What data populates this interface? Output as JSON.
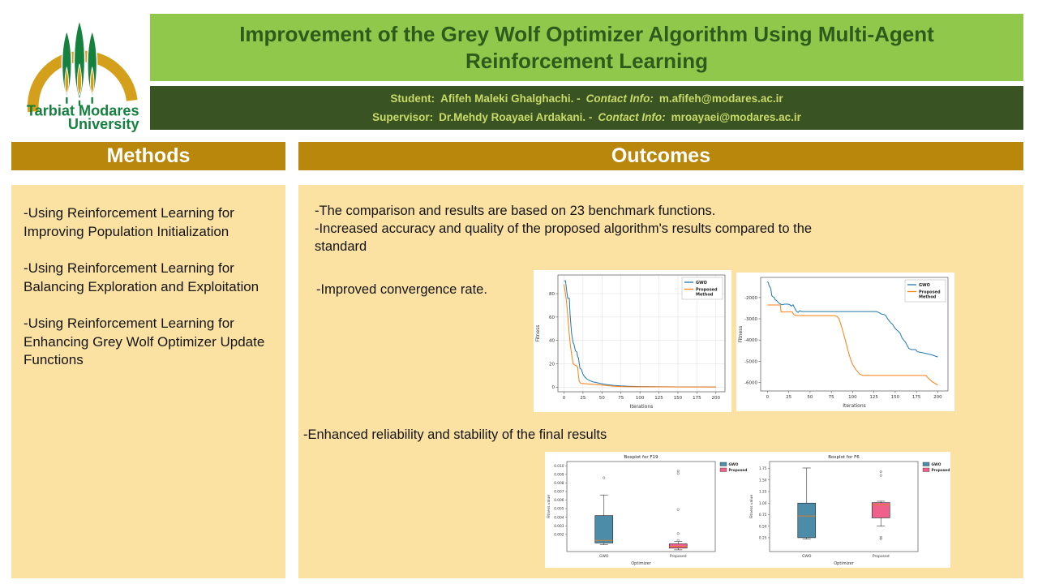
{
  "logo": {
    "line1": "Tarbiat Modares",
    "line2": "University"
  },
  "title": "Improvement of the Grey Wolf Optimizer Algorithm Using Multi-Agent Reinforcement Learning",
  "info_bar": {
    "student_label": "Student:",
    "student_name": "Afifeh Maleki Ghalghachi. -",
    "student_contact_label": "Contact Info:",
    "student_email": "m.afifeh@modares.ac.ir",
    "supervisor_label": "Supervisor:",
    "supervisor_name": "Dr.Mehdy Roayaei Ardakani. -",
    "supervisor_contact_label": "Contact Info:",
    "supervisor_email": "mroayaei@modares.ac.ir"
  },
  "methods": {
    "header": "Methods",
    "items": [
      "-Using Reinforcement Learning for Improving Population Initialization",
      "-Using Reinforcement Learning for Balancing Exploration and Exploitation",
      "-Using Reinforcement Learning for Enhancing Grey Wolf Optimizer Update Functions"
    ]
  },
  "outcomes": {
    "header": "Outcomes",
    "bullet1": "-The comparison and results are based on 23 benchmark functions.",
    "bullet2": "-Increased accuracy and quality of the proposed algorithm's results compared to the standard",
    "bullet3": "-Improved convergence rate.",
    "bullet4": "-Enhanced reliability and stability of the final results"
  },
  "colors": {
    "title_bar_bg": "#8FC84A",
    "title_text": "#2E5B1D",
    "info_bar_bg": "#3A5323",
    "info_text": "#C8DB69",
    "section_header_bg": "#B8870B",
    "panel_bg": "#FBE2A2",
    "gwo_line": "#1f77b4",
    "proposed_line": "#ff7f0e",
    "gwo_box": "#4C8CA8",
    "proposed_box": "#F0608C",
    "logo_gold": "#D4A01C",
    "logo_green": "#15813E"
  },
  "chart_data": [
    {
      "type": "line",
      "xlabel": "Iterations",
      "ylabel": "Fitness",
      "xlim": [
        -8,
        212
      ],
      "ylim": [
        -4,
        96
      ],
      "xticks": [
        0,
        25,
        50,
        75,
        100,
        125,
        150,
        175,
        200
      ],
      "yticks": [
        0,
        20,
        40,
        60,
        80
      ],
      "grid": true,
      "legend_position": "top-right",
      "series": [
        {
          "name": "GWO",
          "name_lines": [
            "GWO"
          ],
          "color": "#1f77b4",
          "points": [
            [
              0,
              91
            ],
            [
              2,
              91
            ],
            [
              4,
              80
            ],
            [
              5,
              76
            ],
            [
              7,
              76
            ],
            [
              8,
              62
            ],
            [
              10,
              46
            ],
            [
              12,
              38
            ],
            [
              13,
              37
            ],
            [
              15,
              31
            ],
            [
              17,
              30
            ],
            [
              18,
              26
            ],
            [
              19,
              25
            ],
            [
              21,
              16
            ],
            [
              23,
              15
            ],
            [
              25,
              11
            ],
            [
              27,
              9
            ],
            [
              30,
              7
            ],
            [
              34,
              5.5
            ],
            [
              38,
              4.5
            ],
            [
              42,
              4
            ],
            [
              47,
              3.2
            ],
            [
              52,
              2.6
            ],
            [
              58,
              2
            ],
            [
              65,
              1.5
            ],
            [
              75,
              1
            ],
            [
              85,
              0.7
            ],
            [
              100,
              0.45
            ],
            [
              120,
              0.3
            ],
            [
              150,
              0.15
            ],
            [
              200,
              0.1
            ]
          ]
        },
        {
          "name": "Proposed Method",
          "name_lines": [
            "Proposed",
            "Method"
          ],
          "color": "#ff7f0e",
          "points": [
            [
              0,
              88
            ],
            [
              3,
              75
            ],
            [
              5,
              61
            ],
            [
              7,
              45
            ],
            [
              8,
              38
            ],
            [
              10,
              28
            ],
            [
              12,
              20
            ],
            [
              14,
              19
            ],
            [
              16,
              18.5
            ],
            [
              18,
              17
            ],
            [
              19,
              10
            ],
            [
              20,
              5
            ],
            [
              22,
              3.2
            ],
            [
              26,
              3
            ],
            [
              32,
              2.7
            ],
            [
              40,
              2.3
            ],
            [
              48,
              1.8
            ],
            [
              56,
              1.3
            ],
            [
              65,
              0.8
            ],
            [
              75,
              0.4
            ],
            [
              90,
              0.25
            ],
            [
              120,
              0.15
            ],
            [
              160,
              0.1
            ],
            [
              200,
              0.08
            ]
          ]
        }
      ]
    },
    {
      "type": "line",
      "xlabel": "Iterations",
      "ylabel": "Fitness",
      "xlim": [
        -8,
        212
      ],
      "ylim": [
        -6400,
        -1050
      ],
      "xticks": [
        0,
        25,
        50,
        75,
        100,
        125,
        150,
        175,
        200
      ],
      "yticks": [
        -2000,
        -3000,
        -4000,
        -5000,
        -6000
      ],
      "grid": false,
      "legend_position": "top-right",
      "series": [
        {
          "name": "GWO",
          "name_lines": [
            "GWO"
          ],
          "color": "#1f77b4",
          "points": [
            [
              0,
              -1250
            ],
            [
              1,
              -1300
            ],
            [
              2,
              -1450
            ],
            [
              3,
              -1500
            ],
            [
              4,
              -1600
            ],
            [
              5,
              -1900
            ],
            [
              6,
              -1950
            ],
            [
              8,
              -2000
            ],
            [
              9,
              -2100
            ],
            [
              11,
              -2150
            ],
            [
              13,
              -2250
            ],
            [
              15,
              -2300
            ],
            [
              17,
              -2340
            ],
            [
              20,
              -2310
            ],
            [
              24,
              -2310
            ],
            [
              26,
              -2330
            ],
            [
              28,
              -2400
            ],
            [
              30,
              -2340
            ],
            [
              32,
              -2500
            ],
            [
              34,
              -2640
            ],
            [
              36,
              -2700
            ],
            [
              38,
              -2620
            ],
            [
              40,
              -2660
            ],
            [
              128,
              -2660
            ],
            [
              131,
              -2710
            ],
            [
              134,
              -2780
            ],
            [
              137,
              -2800
            ],
            [
              139,
              -2850
            ],
            [
              141,
              -3000
            ],
            [
              143,
              -3100
            ],
            [
              145,
              -3200
            ],
            [
              147,
              -3260
            ],
            [
              149,
              -3400
            ],
            [
              151,
              -3500
            ],
            [
              154,
              -3600
            ],
            [
              156,
              -3700
            ],
            [
              158,
              -3900
            ],
            [
              160,
              -4000
            ],
            [
              162,
              -4100
            ],
            [
              164,
              -4250
            ],
            [
              166,
              -4400
            ],
            [
              169,
              -4450
            ],
            [
              174,
              -4450
            ],
            [
              176,
              -4550
            ],
            [
              182,
              -4600
            ],
            [
              188,
              -4650
            ],
            [
              193,
              -4700
            ],
            [
              200,
              -4800
            ]
          ]
        },
        {
          "name": "Proposed Method",
          "name_lines": [
            "Proposed",
            "Method"
          ],
          "color": "#ff7f0e",
          "points": [
            [
              0,
              -2350
            ],
            [
              15,
              -2350
            ],
            [
              16,
              -2680
            ],
            [
              29,
              -2680
            ],
            [
              31,
              -2800
            ],
            [
              34,
              -2850
            ],
            [
              79,
              -2850
            ],
            [
              82,
              -2900
            ],
            [
              84,
              -3000
            ],
            [
              86,
              -3250
            ],
            [
              88,
              -3500
            ],
            [
              90,
              -3800
            ],
            [
              92,
              -4100
            ],
            [
              94,
              -4400
            ],
            [
              96,
              -4700
            ],
            [
              98,
              -4950
            ],
            [
              100,
              -5150
            ],
            [
              103,
              -5350
            ],
            [
              106,
              -5500
            ],
            [
              109,
              -5620
            ],
            [
              112,
              -5670
            ],
            [
              186,
              -5670
            ],
            [
              189,
              -5800
            ],
            [
              193,
              -5950
            ],
            [
              197,
              -6050
            ],
            [
              200,
              -6130
            ]
          ]
        }
      ]
    },
    {
      "type": "box",
      "title": "Boxplot for F19",
      "xlabel": "Optimizer",
      "ylabel": "Fitness value",
      "categories": [
        "GWO",
        "Proposed"
      ],
      "ylim": [
        0,
        0.0105
      ],
      "yticks": [
        0.002,
        0.003,
        0.004,
        0.005,
        0.006,
        0.007,
        0.008,
        0.009,
        0.01
      ],
      "ytick_decimals": 3,
      "legend": [
        "GWO",
        "Proposed"
      ],
      "boxes": [
        {
          "label": "GWO",
          "color": "#4C8CA8",
          "whisker_lo": 0.0008,
          "q1": 0.001,
          "median": 0.0013,
          "q3": 0.0042,
          "whisker_hi": 0.0066,
          "outliers": [
            0.0086
          ]
        },
        {
          "label": "Proposed",
          "color": "#F0608C",
          "whisker_lo": 0.0002,
          "q1": 0.0004,
          "median": 0.0006,
          "q3": 0.0009,
          "whisker_hi": 0.0012,
          "outliers": [
            0.0013,
            0.0021,
            0.0049,
            0.0091,
            0.0094
          ]
        }
      ]
    },
    {
      "type": "box",
      "title": "Boxplot for F6",
      "xlabel": "Optimizer",
      "ylabel": "Fitness value",
      "categories": [
        "GWO",
        "Proposed"
      ],
      "ylim": [
        -0.05,
        1.9
      ],
      "yticks": [
        0.25,
        0.5,
        0.75,
        1.0,
        1.25,
        1.5,
        1.75
      ],
      "ytick_decimals": 2,
      "legend": [
        "GWO",
        "Proposed"
      ],
      "boxes": [
        {
          "label": "GWO",
          "color": "#4C8CA8",
          "whisker_lo": 0.22,
          "q1": 0.25,
          "median": 0.72,
          "q3": 1.0,
          "whisker_hi": 1.76,
          "outliers": []
        },
        {
          "label": "Proposed",
          "color": "#F0608C",
          "whisker_lo": 0.5,
          "q1": 0.68,
          "median": 0.96,
          "q3": 1.01,
          "whisker_hi": 1.04,
          "outliers": [
            1.68,
            1.6,
            0.26,
            0.23
          ]
        }
      ]
    }
  ]
}
